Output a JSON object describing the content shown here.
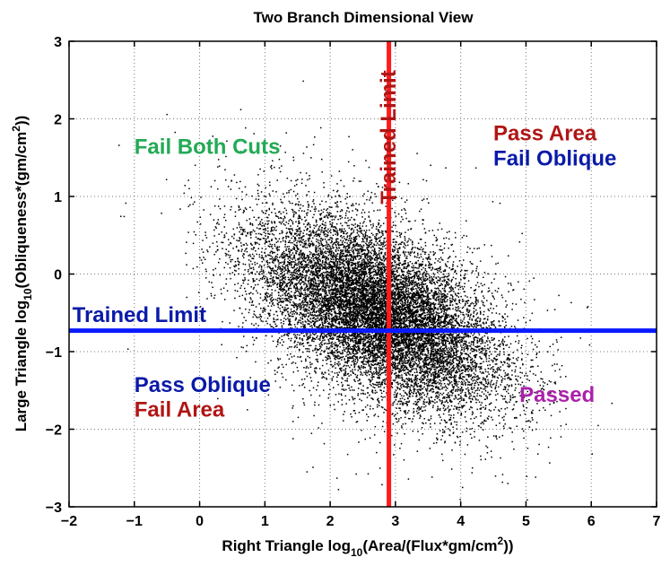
{
  "chart_data": {
    "type": "scatter",
    "title": "Two Branch Dimensional View",
    "xlabel": {
      "pre": "Right Triangle log",
      "sub": "10",
      "mid": "(Area/(Flux*gm/cm",
      "sup": "2",
      "post": "))"
    },
    "ylabel": {
      "pre": "Large Triangle log",
      "sub": "10",
      "mid": "(Obliqueness*(gm/cm",
      "sup": "2",
      "post": "))"
    },
    "xlim": [
      -2,
      7
    ],
    "ylim": [
      -3,
      3
    ],
    "xticks": [
      "-2",
      "-1",
      "0",
      "1",
      "2",
      "3",
      "4",
      "5",
      "6",
      "7"
    ],
    "yticks": [
      "3",
      "2",
      "1",
      "0",
      "-1",
      "-2",
      "-3"
    ],
    "grid": "dotted",
    "point_color": "#000000",
    "cloud": {
      "n_points": 14000,
      "x_mean": 2.75,
      "x_sd": 0.95,
      "y_mean": -0.5,
      "y_sd": 0.62,
      "correlation": -0.55
    },
    "limits": [
      {
        "orientation": "vertical",
        "value": 2.9,
        "color": "#ff1a1a"
      },
      {
        "orientation": "horizontal",
        "value": -0.73,
        "color": "#0a1aff"
      }
    ],
    "annotations": [
      {
        "text": "Trained Limit",
        "x": -1.95,
        "y": -0.62,
        "color": "#0a1aa8",
        "rotate": 0
      },
      {
        "text": "Trained Limit",
        "x": 3.0,
        "y": 0.9,
        "color": "#b01515",
        "rotate": -90
      },
      {
        "text": "Fail Both Cuts",
        "x": -1.0,
        "y": 1.55,
        "color": "#22aa55",
        "rotate": 0
      },
      {
        "text": "Pass Area",
        "x": 4.5,
        "y": 1.72,
        "color": "#b01515",
        "rotate": 0
      },
      {
        "text": "Fail Oblique",
        "x": 4.5,
        "y": 1.4,
        "color": "#0a1aa8",
        "rotate": 0
      },
      {
        "text": "Pass Oblique",
        "x": -1.0,
        "y": -1.52,
        "color": "#0a1aa8",
        "rotate": 0
      },
      {
        "text": "Fail Area",
        "x": -1.0,
        "y": -1.84,
        "color": "#b01515",
        "rotate": 0
      },
      {
        "text": "Passed",
        "x": 4.9,
        "y": -1.65,
        "color": "#aa22aa",
        "rotate": 0
      }
    ]
  }
}
